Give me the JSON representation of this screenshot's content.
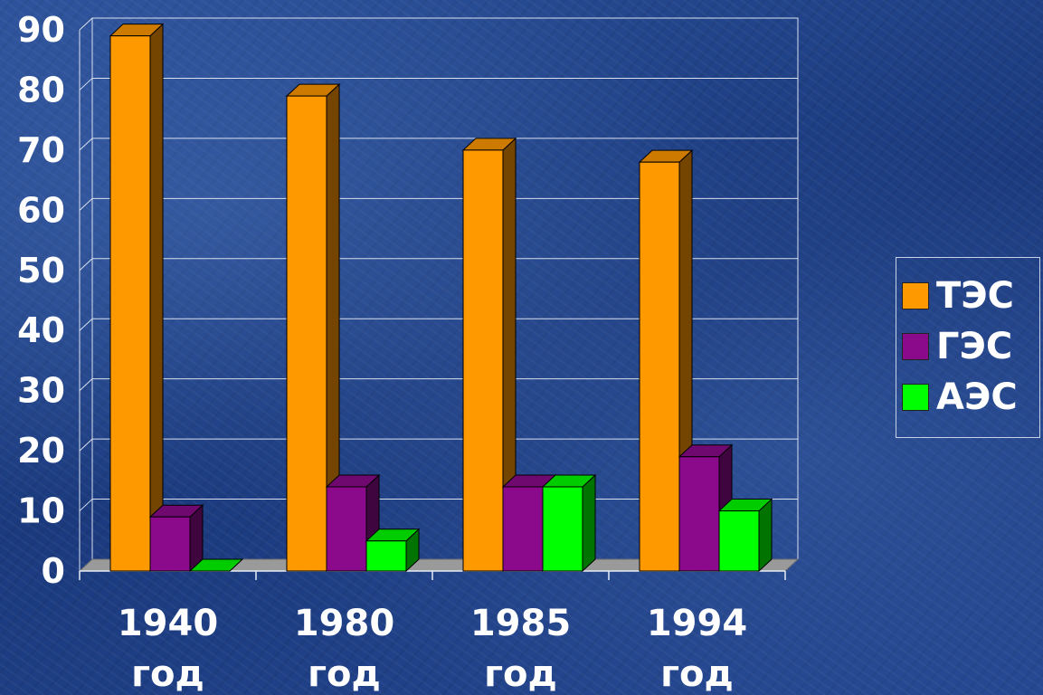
{
  "chart_data": {
    "type": "bar",
    "categories": [
      "1940\nгод",
      "1980\nгод",
      "1985\nгод",
      "1994\nгод"
    ],
    "series": [
      {
        "name": "ТЭС",
        "values": [
          89,
          79,
          70,
          68
        ],
        "color": "#ff9900"
      },
      {
        "name": "ГЭС",
        "values": [
          9,
          14,
          14,
          19
        ],
        "color": "#8b0a8b"
      },
      {
        "name": "АЭС",
        "values": [
          0,
          5,
          14,
          10
        ],
        "color": "#00ff00"
      }
    ],
    "y_ticks": [
      "0",
      "10",
      "20",
      "30",
      "40",
      "50",
      "60",
      "70",
      "80",
      "90"
    ],
    "ylim": [
      0,
      90
    ],
    "grid": true,
    "legend_position": "right",
    "style": "3d-column"
  }
}
